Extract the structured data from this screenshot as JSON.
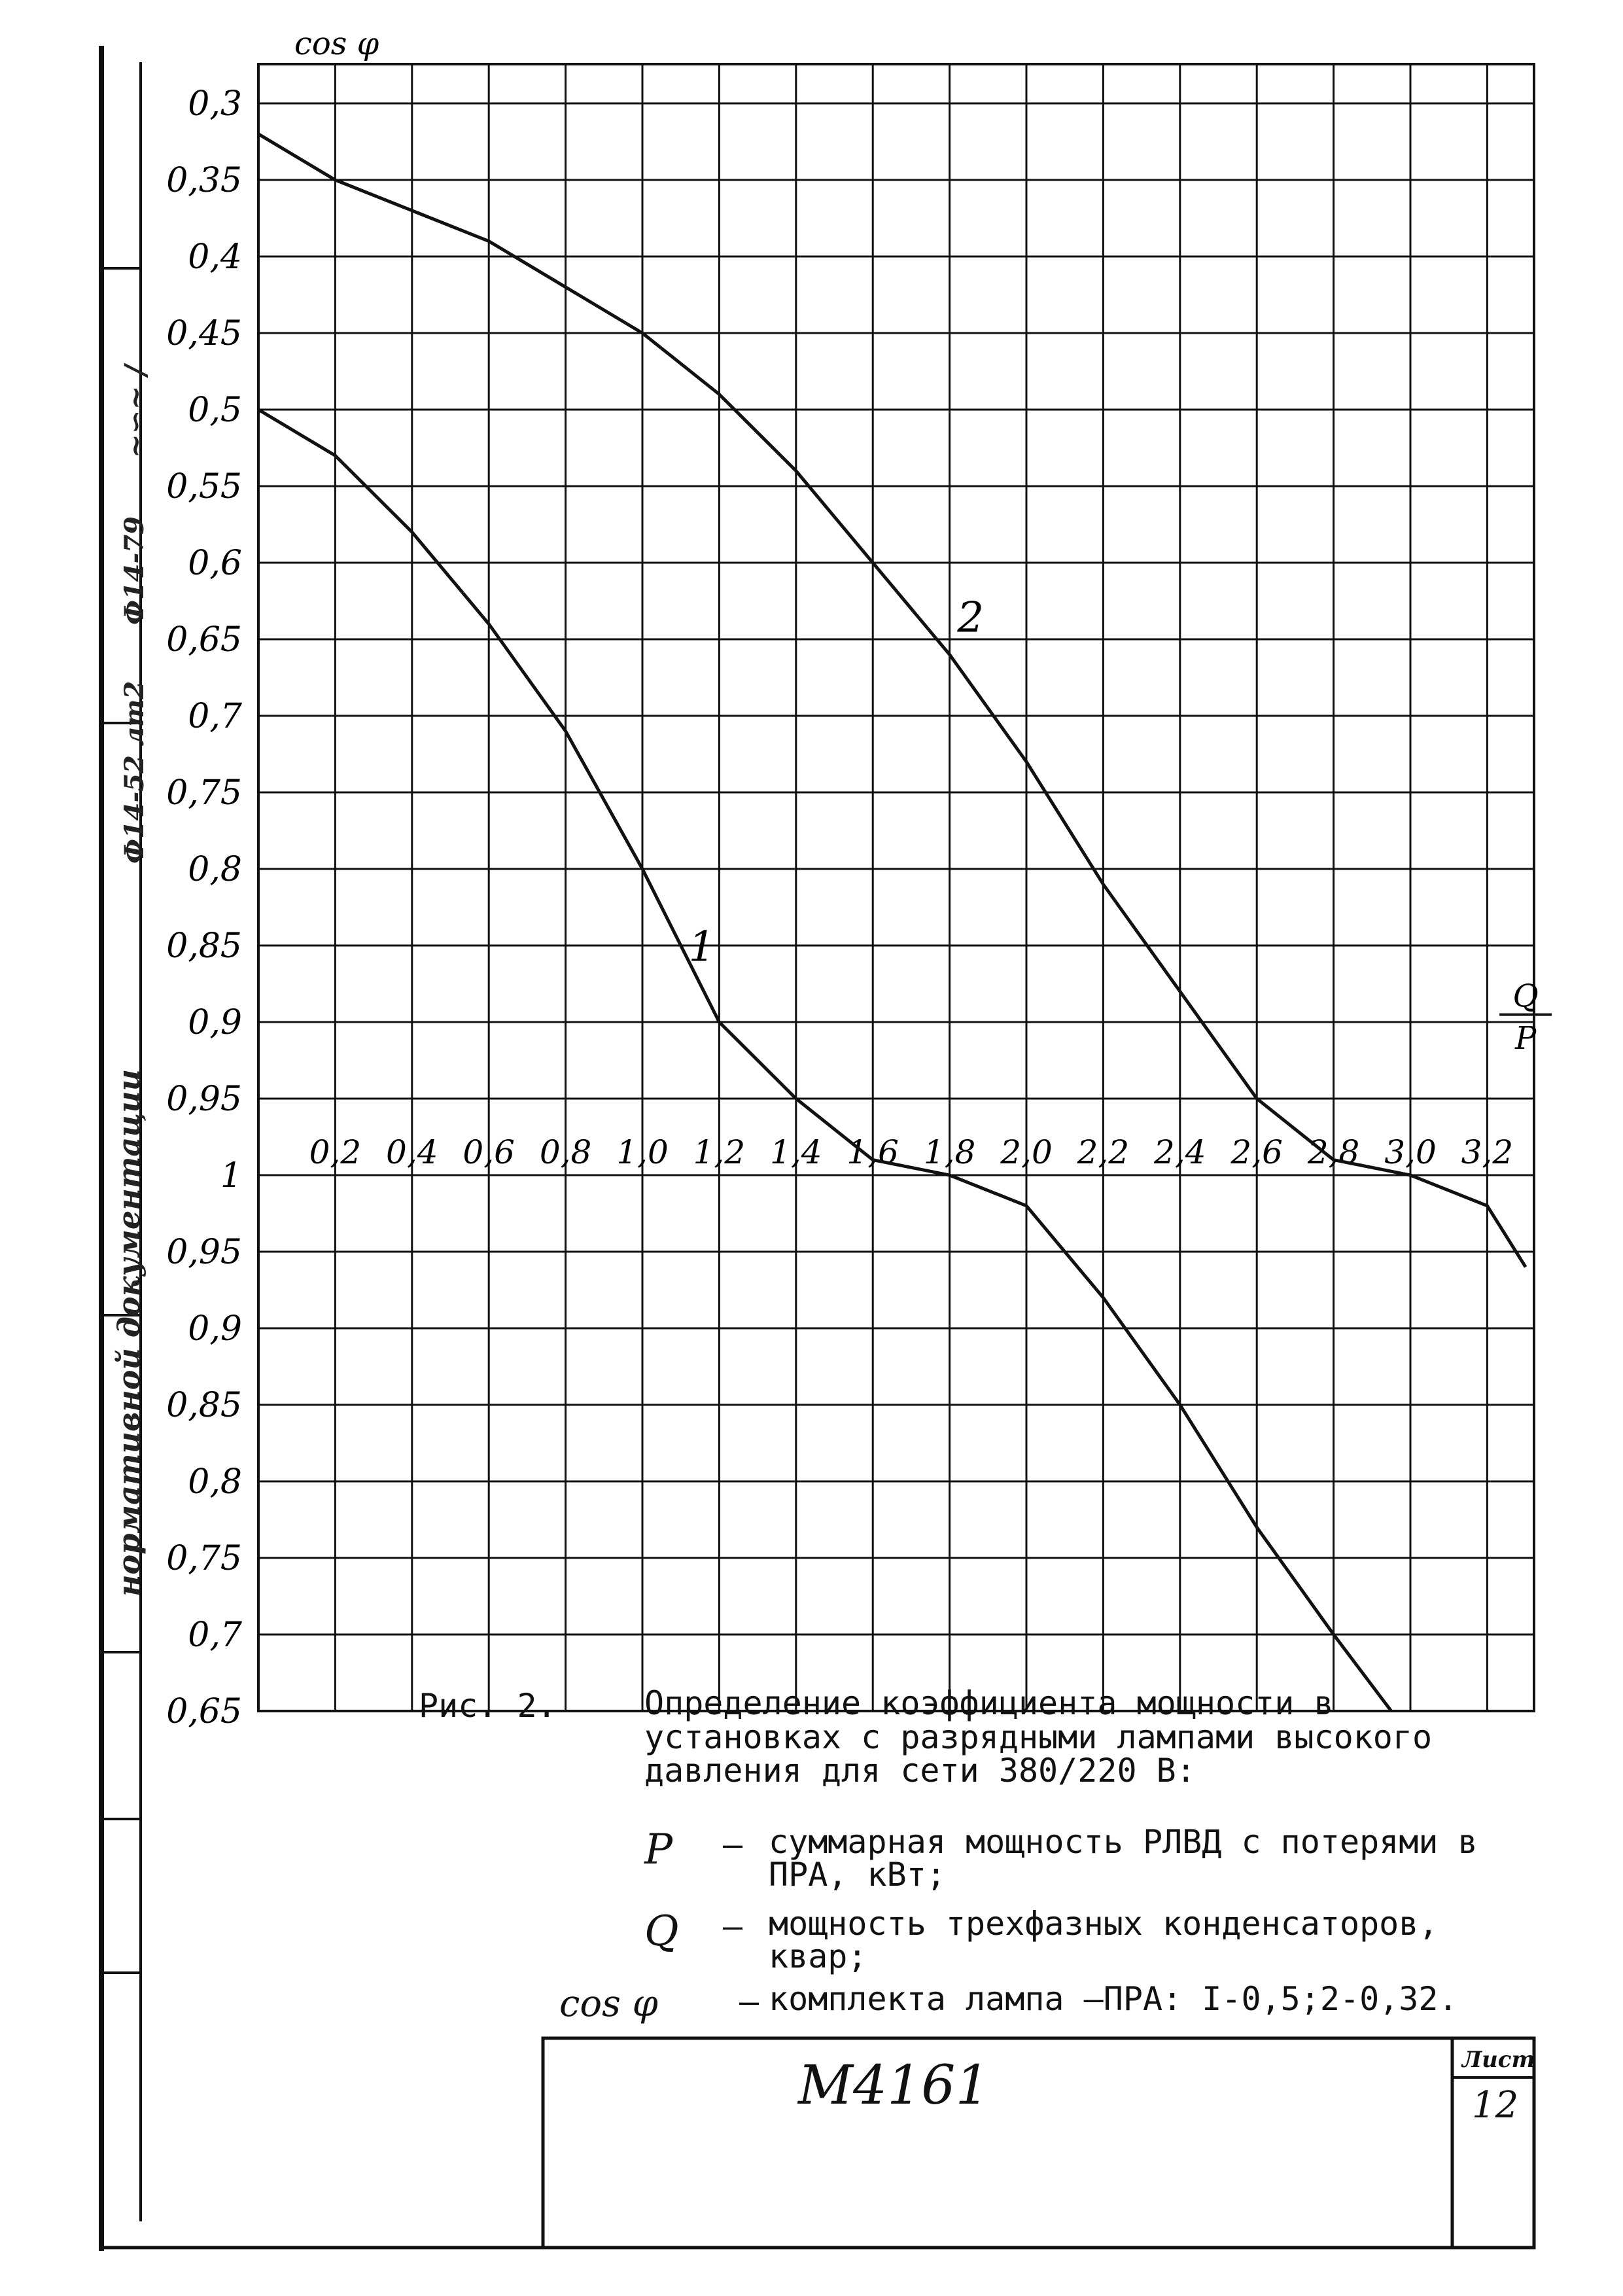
{
  "chart_data": {
    "type": "line",
    "ylabel": "cos φ",
    "xlabel_num": "Q",
    "xlabel_den": "P",
    "x_ticks": [
      "0,2",
      "0,4",
      "0,6",
      "0,8",
      "1,0",
      "1,2",
      "1,4",
      "1,6",
      "1,8",
      "2,0",
      "2,2",
      "2,4",
      "2,6",
      "2,8",
      "3,0",
      "3,2"
    ],
    "y_ticks_upper": [
      "0,3",
      "0,35",
      "0,4",
      "0,45",
      "0,5",
      "0,55",
      "0,6",
      "0,65",
      "0,7",
      "0,75",
      "0,8",
      "0,85",
      "0,9",
      "0,95",
      "1"
    ],
    "y_ticks_lower": [
      "0,95",
      "0,9",
      "0,85",
      "0,8",
      "0,75",
      "0,7",
      "0,65"
    ],
    "xlim": [
      0,
      3.3
    ],
    "series": [
      {
        "name": "1",
        "x": [
          0,
          0.2,
          0.4,
          0.6,
          0.8,
          1.0,
          1.2,
          1.4,
          1.6,
          1.8,
          2.0,
          2.2,
          2.4,
          2.6,
          2.8,
          2.95
        ],
        "y": [
          0.5,
          0.53,
          0.58,
          0.64,
          0.71,
          0.8,
          0.9,
          0.95,
          0.99,
          1.0,
          0.98,
          0.92,
          0.85,
          0.77,
          0.7,
          0.65
        ]
      },
      {
        "name": "2",
        "x": [
          0,
          0.2,
          0.4,
          0.6,
          0.8,
          1.0,
          1.2,
          1.4,
          1.6,
          1.8,
          2.0,
          2.2,
          2.4,
          2.6,
          2.8,
          3.0,
          3.2,
          3.3
        ],
        "y": [
          0.32,
          0.35,
          0.37,
          0.39,
          0.42,
          0.45,
          0.49,
          0.54,
          0.6,
          0.66,
          0.73,
          0.81,
          0.88,
          0.95,
          0.99,
          1.0,
          0.98,
          0.94
        ]
      }
    ]
  },
  "caption": {
    "fig_label": "Рис. 2.",
    "text": "Определение коэффициента мощности в установках с разрядными лампами высокого давления для сети 380/220 В:"
  },
  "legend": [
    {
      "symbol": "P",
      "dash": "–",
      "text": "суммарная мощность РЛВД с потерями в ПРА, кВт;"
    },
    {
      "symbol": "Q",
      "dash": "–",
      "text": "мощность трехфазных конденсаторов, квар;"
    },
    {
      "symbol": "cos φ",
      "dash": "–",
      "text": "комплекта лампа –ПРА: I-0,5;2-0,32."
    }
  ],
  "margin_stamps": [
    "Ф14-52 лт2",
    "Ф14-79",
    "нормативной документации"
  ],
  "title_block": {
    "code": "М4161",
    "sheet_label": "Лист",
    "sheet_number": "12"
  }
}
